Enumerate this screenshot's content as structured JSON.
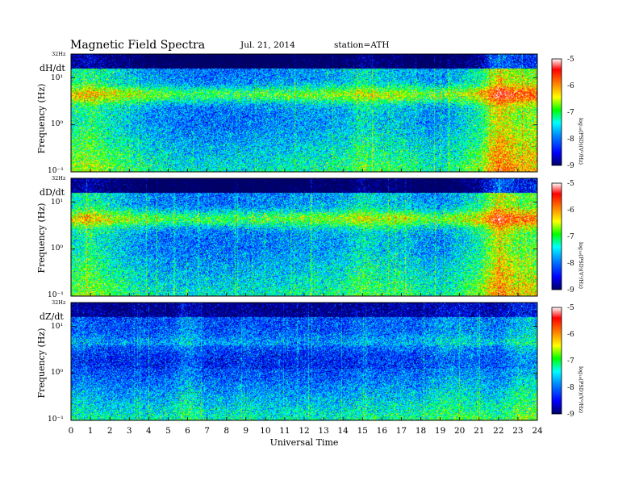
{
  "header": {
    "title": "Magnetic  Field  Spectra",
    "date": "Jul.  21, 2014",
    "station": "station=ATH"
  },
  "chart_data": {
    "type": "heatmap",
    "xlabel": "Universal Time",
    "x_ticks": [
      "0",
      "1",
      "2",
      "3",
      "4",
      "5",
      "6",
      "7",
      "8",
      "9",
      "10",
      "11",
      "12",
      "13",
      "14",
      "15",
      "16",
      "17",
      "18",
      "19",
      "20",
      "21",
      "22",
      "23",
      "24"
    ],
    "xlim": [
      0,
      24
    ],
    "y_scale": "log",
    "colorbar": {
      "label": "log₁₀(PSD)(V²/Hz)",
      "range": [
        -9,
        -5
      ],
      "ticks": [
        "-5",
        "-6",
        "-7",
        "-8",
        "-9"
      ],
      "colors": [
        "#000066",
        "#0000ff",
        "#0088ff",
        "#00ffff",
        "#00ff00",
        "#ffff00",
        "#ff8800",
        "#ff0000",
        "#ffffff"
      ]
    },
    "panels": [
      {
        "component": "dH/dt",
        "ylabel": "Frequency (Hz)",
        "y_ticks": [
          "32Hz",
          "10¹",
          "10⁰",
          "10⁻¹"
        ],
        "ylim_hz": [
          0.1,
          32
        ],
        "mean_level_by_hour": [
          -7.3,
          -7.1,
          -7.4,
          -7.6,
          -7.8,
          -7.9,
          -8.0,
          -8.0,
          -8.0,
          -8.0,
          -7.9,
          -7.9,
          -7.8,
          -7.8,
          -7.7,
          -7.4,
          -7.6,
          -7.6,
          -7.8,
          -7.9,
          -7.6,
          -7.3,
          -6.3,
          -6.7
        ]
      },
      {
        "component": "dD/dt",
        "ylabel": "Frequency (Hz)",
        "y_ticks": [
          "32Hz",
          "10¹",
          "10⁰",
          "10⁻¹"
        ],
        "ylim_hz": [
          0.1,
          32
        ],
        "mean_level_by_hour": [
          -7.4,
          -7.2,
          -7.5,
          -7.7,
          -7.9,
          -8.0,
          -8.0,
          -8.0,
          -8.0,
          -8.0,
          -7.9,
          -7.9,
          -7.8,
          -7.8,
          -7.7,
          -7.4,
          -7.6,
          -7.6,
          -7.8,
          -7.9,
          -7.6,
          -7.3,
          -6.4,
          -6.9
        ]
      },
      {
        "component": "dZ/dt",
        "ylabel": "Frequency (Hz)",
        "y_ticks": [
          "32Hz",
          "10¹",
          "10⁰",
          "10⁻¹"
        ],
        "ylim_hz": [
          0.1,
          32
        ],
        "mean_level_by_hour": [
          -8.1,
          -8.1,
          -8.2,
          -8.2,
          -8.2,
          -8.2,
          -7.8,
          -8.2,
          -8.2,
          -8.1,
          -8.2,
          -8.2,
          -8.2,
          -8.2,
          -8.2,
          -8.0,
          -8.1,
          -8.0,
          -8.1,
          -7.8,
          -7.8,
          -7.9,
          -8.0,
          -7.6
        ]
      }
    ]
  }
}
